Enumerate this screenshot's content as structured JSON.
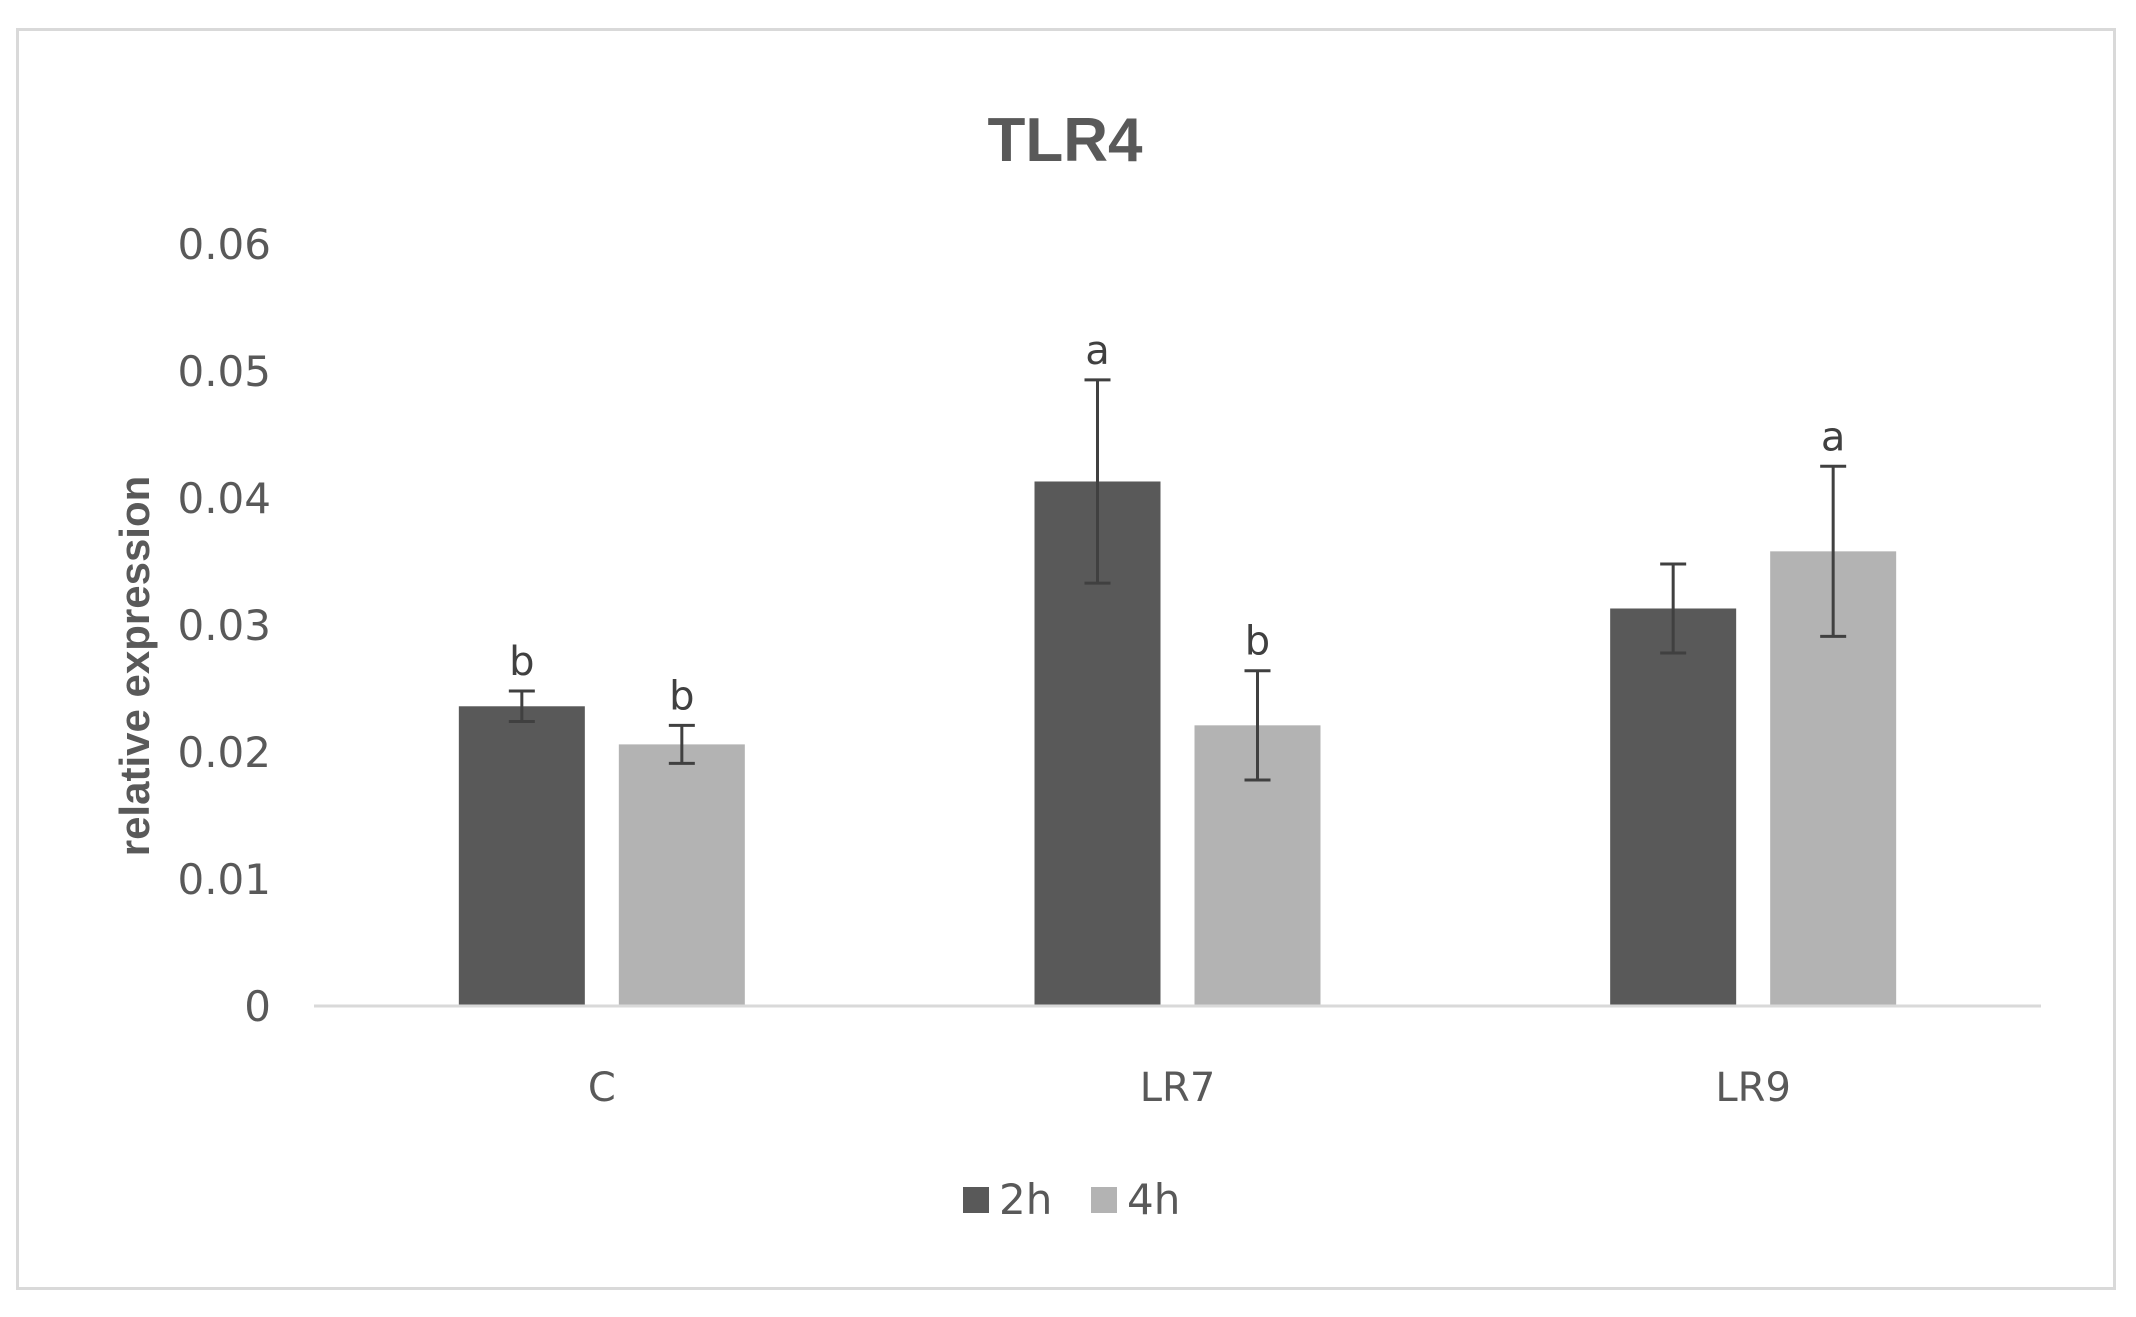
{
  "chart_data": {
    "type": "bar",
    "title": "TLR4",
    "xlabel": "",
    "ylabel": "relative expression",
    "ylim": [
      0,
      0.06
    ],
    "yticks": [
      "0",
      "0.01",
      "0.02",
      "0.03",
      "0.04",
      "0.05",
      "0.06"
    ],
    "categories": [
      "C",
      "LR7",
      "LR9"
    ],
    "series": [
      {
        "name": "2h",
        "color": "#595959",
        "values": [
          0.0236,
          0.0413,
          0.0313
        ],
        "errors": [
          0.0012,
          0.008,
          0.0035
        ],
        "labels": [
          "b",
          "a",
          ""
        ]
      },
      {
        "name": "4h",
        "color": "#b3b3b3",
        "values": [
          0.0206,
          0.0221,
          0.0358
        ],
        "errors": [
          0.0015,
          0.0043,
          0.0067
        ],
        "labels": [
          "b",
          "b",
          "a"
        ]
      }
    ],
    "legend_position": "bottom",
    "grid": false
  }
}
